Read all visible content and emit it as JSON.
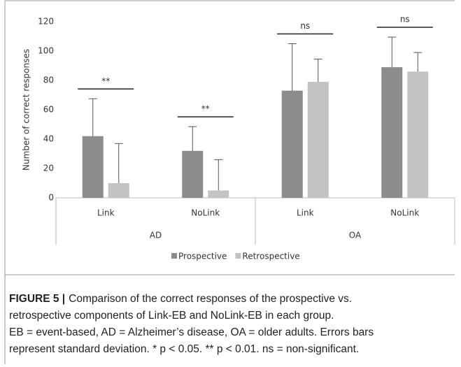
{
  "chart_data": {
    "type": "bar",
    "y_label": "Number of correct responses",
    "categories": [
      "Link",
      "NoLink",
      "Link",
      "NoLink"
    ],
    "groups": [
      "AD",
      "OA"
    ],
    "series": [
      {
        "name": "Prospective",
        "color": "#8c8c8c",
        "values": [
          42,
          32,
          73,
          89
        ],
        "errors": [
          25.5,
          16.5,
          32,
          20.5
        ]
      },
      {
        "name": "Retrospective",
        "color": "#c3c3c3",
        "values": [
          10,
          5,
          79,
          86
        ],
        "errors": [
          27,
          21,
          15.5,
          13
        ]
      }
    ],
    "annotations": [
      "**",
      "**",
      "ns",
      "ns"
    ],
    "ylim": [
      0,
      120
    ],
    "yticks": [
      0,
      20,
      40,
      60,
      80,
      100,
      120
    ],
    "legend": "bottom"
  },
  "caption": {
    "label": "FIGURE 5 |",
    "lines": [
      "Comparison of the correct responses of the prospective vs.",
      "retrospective components of Link-EB and NoLink-EB in each group.",
      "EB = event-based, AD = Alzheimer’s disease, OA = older adults. Errors bars",
      "represent standard deviation. * p < 0.05. ** p < 0.01. ns = non-significant."
    ]
  }
}
